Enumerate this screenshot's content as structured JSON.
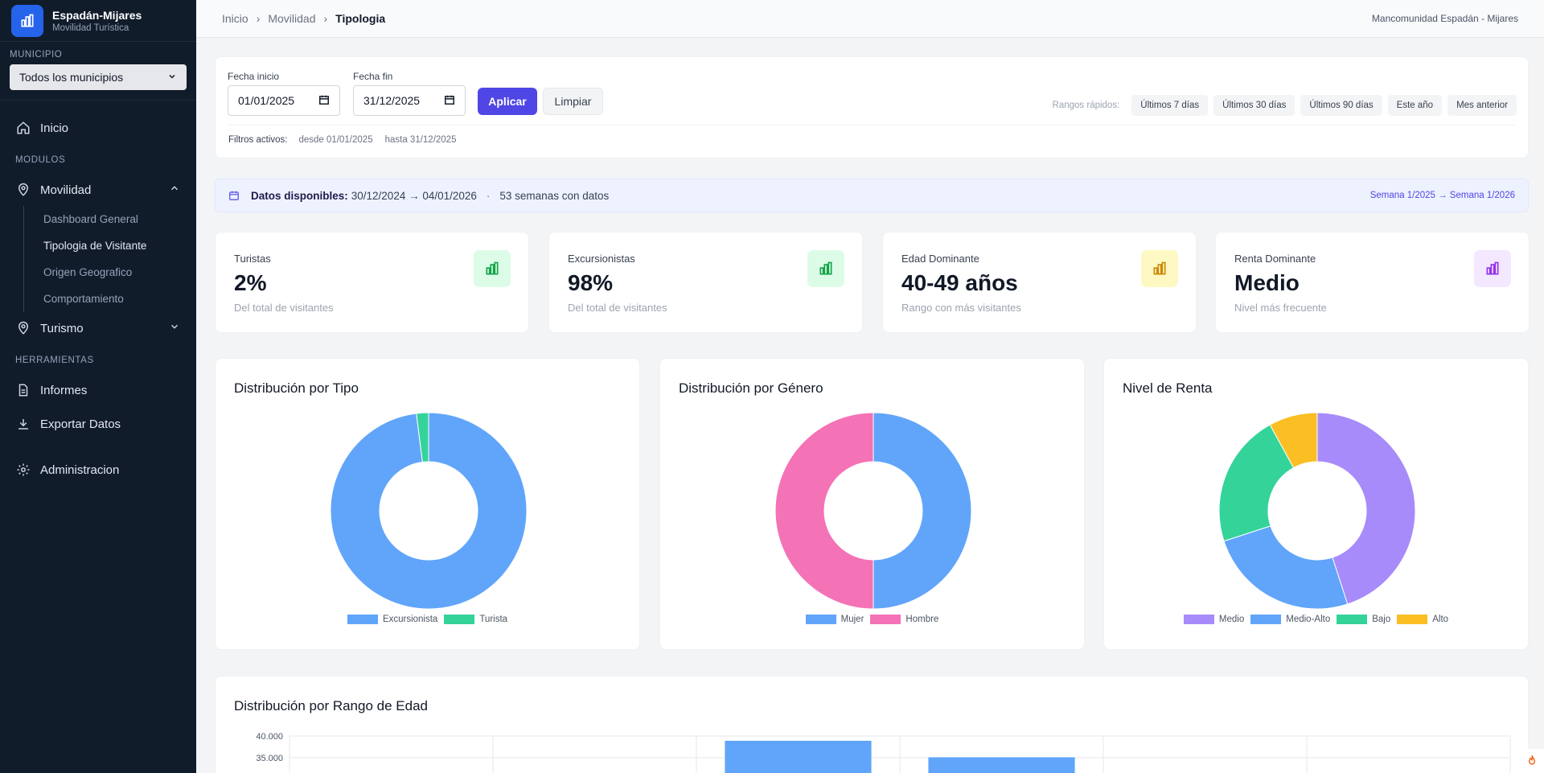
{
  "brand": {
    "title": "Espadán-Mijares",
    "subtitle": "Movilidad Turística"
  },
  "municipio": {
    "label": "MUNICIPIO",
    "selected": "Todos los municipios"
  },
  "nav": {
    "inicio": "Inicio",
    "modulos_label": "MODULOS",
    "movilidad": "Movilidad",
    "movilidad_items": [
      "Dashboard General",
      "Tipologia de Visitante",
      "Origen Geografico",
      "Comportamiento"
    ],
    "turismo": "Turismo",
    "herramientas_label": "HERRAMIENTAS",
    "informes": "Informes",
    "exportar": "Exportar Datos",
    "administracion": "Administracion"
  },
  "breadcrumb": [
    "Inicio",
    "Movilidad",
    "Tipologia"
  ],
  "org_name": "Mancomunidad Espadán - Mijares",
  "filters": {
    "start_label": "Fecha inicio",
    "start_value": "01/01/2025",
    "end_label": "Fecha fin",
    "end_value": "31/12/2025",
    "apply": "Aplicar",
    "clear": "Limpiar",
    "quick_label": "Rangos rápidos:",
    "quick": [
      "Últimos 7 días",
      "Últimos 30 días",
      "Últimos 90 días",
      "Este año",
      "Mes anterior"
    ],
    "active_label": "Filtros activos:",
    "active_from": "desde 01/01/2025",
    "active_to": "hasta 31/12/2025"
  },
  "info": {
    "label": "Datos disponibles:",
    "range": "30/12/2024 → 04/01/2026",
    "weeks": "53 semanas con datos",
    "weeks_range": "Semana 1/2025 → Semana 1/2026"
  },
  "stats": [
    {
      "label": "Turistas",
      "value": "2%",
      "sub": "Del total de visitantes",
      "color": "#16a34a",
      "bg": "#dcfce7"
    },
    {
      "label": "Excursionistas",
      "value": "98%",
      "sub": "Del total de visitantes",
      "color": "#16a34a",
      "bg": "#dcfce7"
    },
    {
      "label": "Edad Dominante",
      "value": "40-49 años",
      "sub": "Rango con más visitantes",
      "color": "#ca8a04",
      "bg": "#fef9c3"
    },
    {
      "label": "Renta Dominante",
      "value": "Medio",
      "sub": "Nivel más frecuente",
      "color": "#9333ea",
      "bg": "#f3e8ff"
    }
  ],
  "chart_data": [
    {
      "type": "pie",
      "title": "Distribución por Tipo",
      "categories": [
        "Excursionista",
        "Turista"
      ],
      "values": [
        98,
        2
      ],
      "colors": [
        "#60a5fa",
        "#34d399"
      ],
      "legend": "bottom"
    },
    {
      "type": "pie",
      "title": "Distribución por Género",
      "categories": [
        "Mujer",
        "Hombre"
      ],
      "values": [
        50,
        50
      ],
      "colors": [
        "#60a5fa",
        "#f472b6"
      ],
      "legend": "bottom"
    },
    {
      "type": "pie",
      "title": "Nivel de Renta",
      "categories": [
        "Medio",
        "Medio-Alto",
        "Bajo",
        "Alto"
      ],
      "values": [
        45,
        25,
        22,
        8
      ],
      "colors": [
        "#a78bfa",
        "#60a5fa",
        "#34d399",
        "#fbbf24"
      ],
      "legend": "bottom"
    },
    {
      "type": "bar",
      "title": "Distribución por Rango de Edad",
      "y_ticks": [
        "40.000",
        "35.000"
      ],
      "ylim": [
        30000,
        40000
      ],
      "values": [
        null,
        null,
        38900,
        35100,
        null,
        null
      ],
      "color": "#60a5fa",
      "grid": true
    }
  ]
}
